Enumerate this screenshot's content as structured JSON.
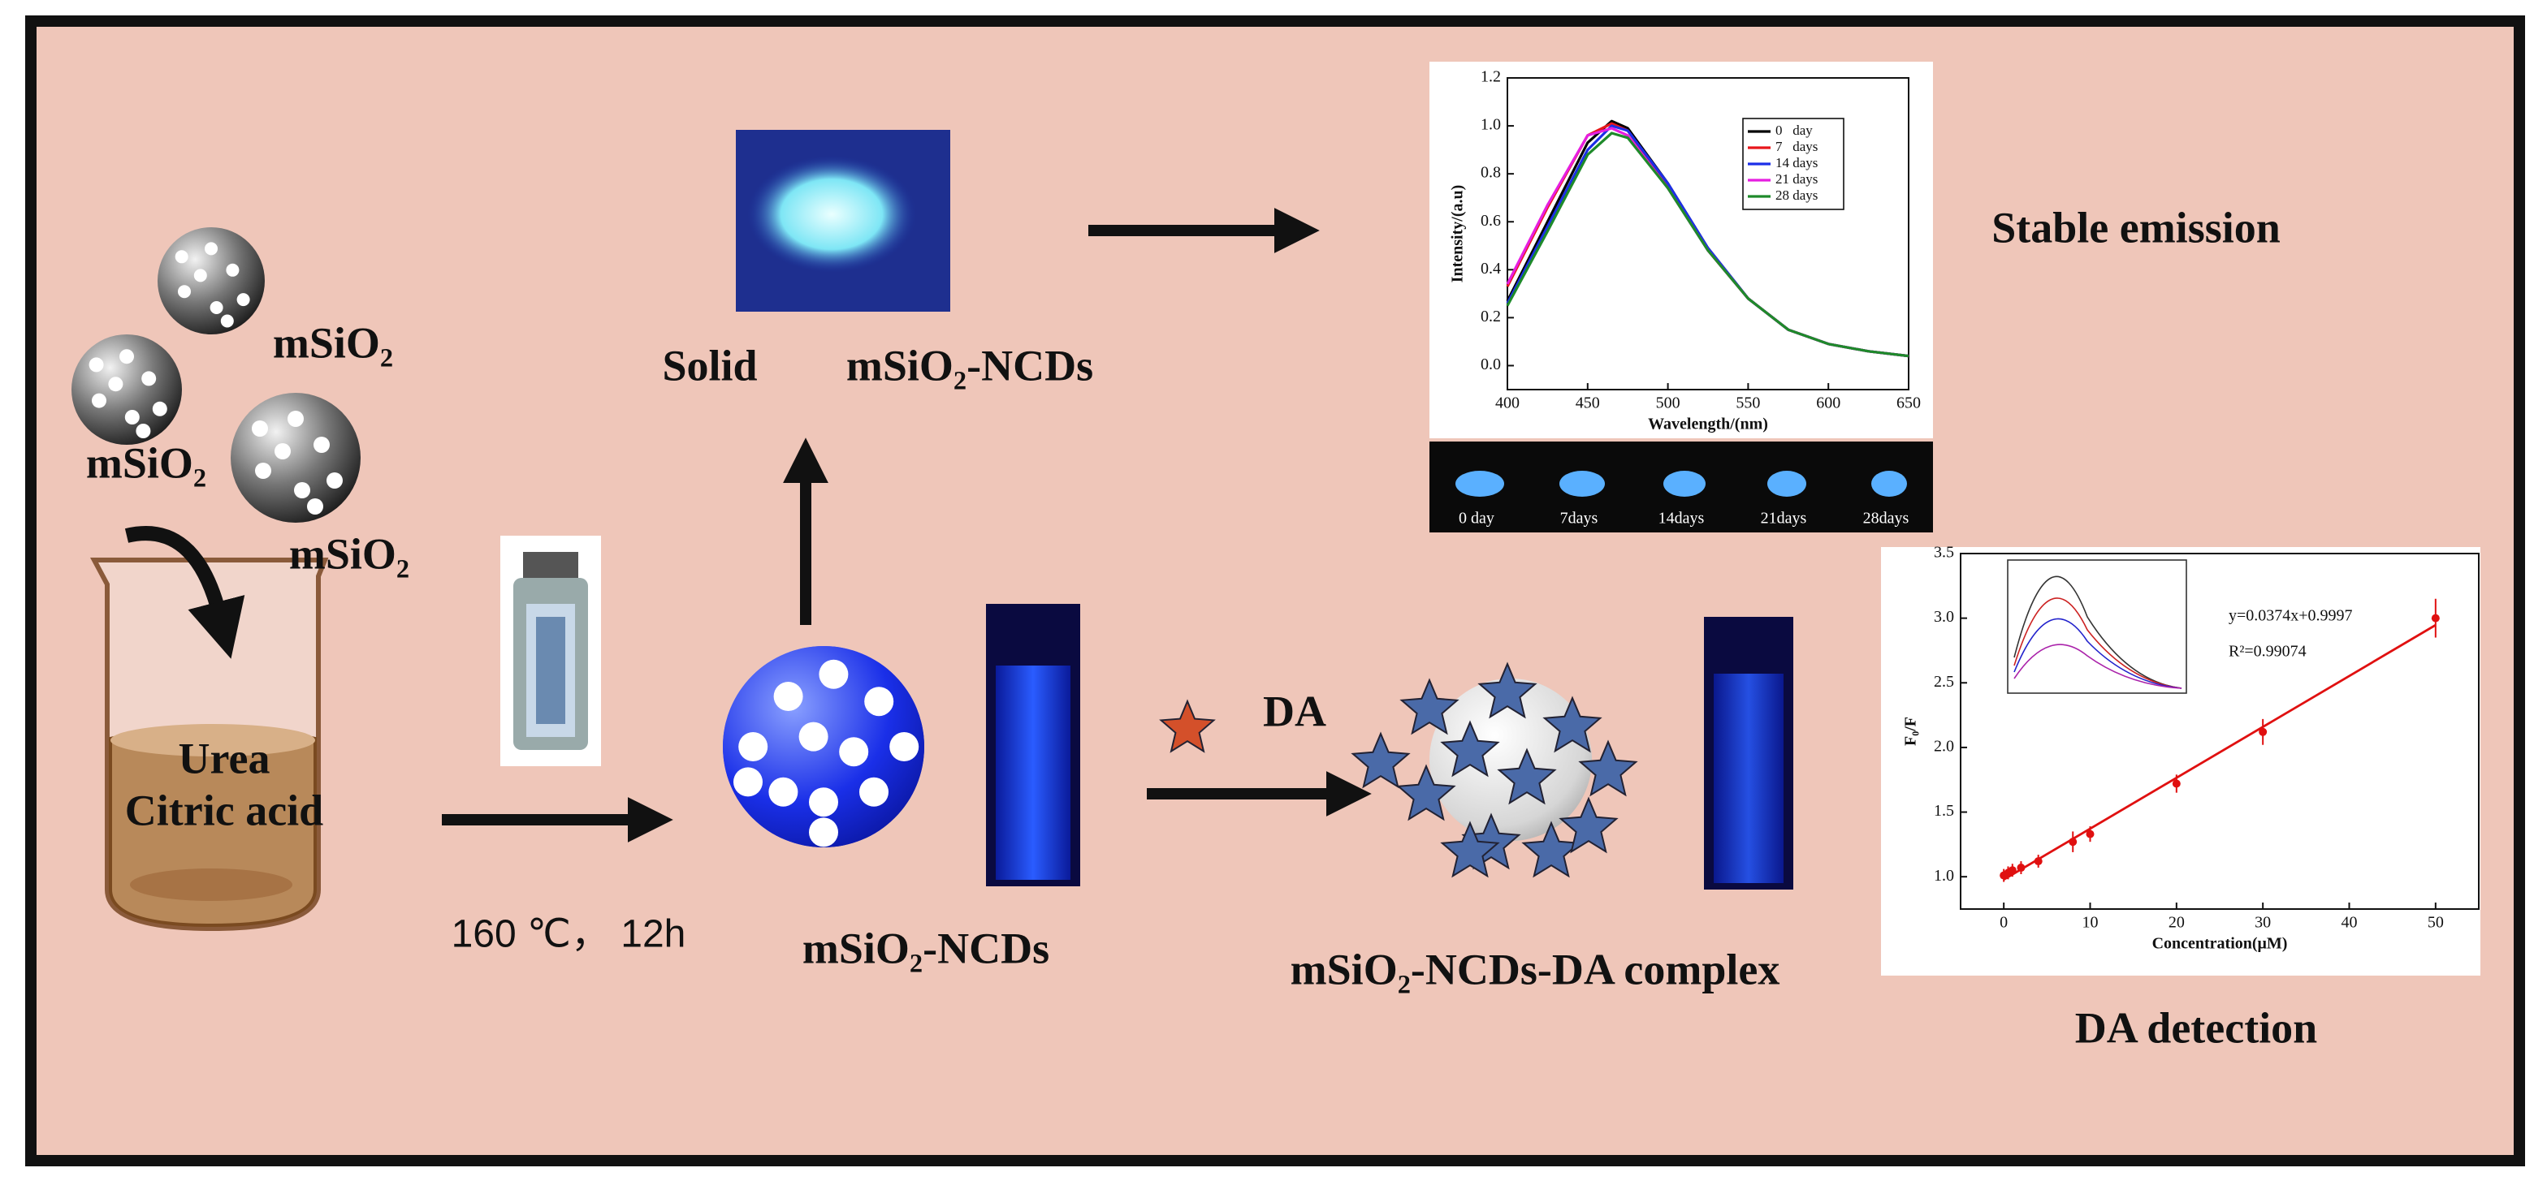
{
  "labels": {
    "msio2": [
      "mSiO₂",
      "mSiO₂",
      "mSiO₂"
    ],
    "reactants": [
      "Urea",
      "Citric acid"
    ],
    "condition": "160 ℃， 12h",
    "solid": "Solid",
    "solid_product": "mSiO₂-NCDs",
    "product": "mSiO₂-NCDs",
    "analyte": "DA",
    "complex": "mSiO₂-NCDs-DA complex",
    "stable_emission": "Stable emission",
    "da_detection": "DA detection",
    "photo_days": [
      "0 day",
      "7days",
      "14days",
      "21days",
      "28days"
    ]
  },
  "chart_data": [
    {
      "type": "line",
      "x_label": "Wavelength/(nm)",
      "y_label": "Intensity/(a.u)",
      "x": [
        400,
        425,
        450,
        465,
        475,
        500,
        525,
        550,
        575,
        600,
        625,
        650
      ],
      "series": [
        {
          "name": "0   day",
          "color": "#000000",
          "values": [
            0.27,
            0.6,
            0.93,
            1.02,
            0.99,
            0.76,
            0.49,
            0.28,
            0.15,
            0.09,
            0.06,
            0.04
          ]
        },
        {
          "name": "7   days",
          "color": "#e8161b",
          "values": [
            0.33,
            0.66,
            0.96,
            1.01,
            0.98,
            0.75,
            0.48,
            0.28,
            0.15,
            0.09,
            0.06,
            0.04
          ]
        },
        {
          "name": "14 days",
          "color": "#1c2ee8",
          "values": [
            0.26,
            0.58,
            0.9,
            1.0,
            0.98,
            0.76,
            0.49,
            0.28,
            0.15,
            0.09,
            0.06,
            0.04
          ]
        },
        {
          "name": "21 days",
          "color": "#e61ee0",
          "values": [
            0.34,
            0.67,
            0.96,
            0.99,
            0.96,
            0.74,
            0.48,
            0.28,
            0.15,
            0.09,
            0.06,
            0.04
          ]
        },
        {
          "name": "28 days",
          "color": "#1e8a2a",
          "values": [
            0.25,
            0.56,
            0.88,
            0.97,
            0.95,
            0.74,
            0.48,
            0.28,
            0.15,
            0.09,
            0.06,
            0.04
          ]
        }
      ],
      "xlim": [
        400,
        650
      ],
      "ylim": [
        -0.1,
        1.2
      ],
      "xticks": [
        400,
        450,
        500,
        550,
        600,
        650
      ],
      "yticks": [
        {
          "value": 0,
          "label": "0.0"
        },
        {
          "value": 0.2,
          "label": "0.2"
        },
        {
          "value": 0.4,
          "label": "0.4"
        },
        {
          "value": 0.6,
          "label": "0.6"
        },
        {
          "value": 0.8,
          "label": "0.8"
        },
        {
          "value": 1,
          "label": "1.0"
        },
        {
          "value": 1.2,
          "label": "1.2"
        }
      ],
      "legend": "upper right"
    },
    {
      "type": "scatter",
      "x_label": "Concentration(μM)",
      "y_label": "F₀/F",
      "x": [
        0,
        0.5,
        1,
        2,
        4,
        8,
        10,
        20,
        30,
        50
      ],
      "values": [
        1.01,
        1.03,
        1.05,
        1.07,
        1.12,
        1.27,
        1.33,
        1.72,
        2.12,
        3.0
      ],
      "errors": [
        0.05,
        0.05,
        0.05,
        0.05,
        0.05,
        0.08,
        0.06,
        0.07,
        0.1,
        0.15
      ],
      "color": "#e01010",
      "annotations": [
        "y=0.0374x+0.9997",
        "R²=0.99074"
      ],
      "xlim": [
        -5,
        55
      ],
      "ylim": [
        0.75,
        3.5
      ],
      "xticks": [
        0,
        10,
        20,
        30,
        40,
        50
      ],
      "yticks": [
        {
          "value": 1,
          "label": "1.0"
        },
        {
          "value": 1.5,
          "label": "1.5"
        },
        {
          "value": 2,
          "label": "2.0"
        },
        {
          "value": 2.5,
          "label": "2.5"
        },
        {
          "value": 3,
          "label": "3.0"
        },
        {
          "value": 3.5,
          "label": "3.5"
        }
      ]
    }
  ]
}
